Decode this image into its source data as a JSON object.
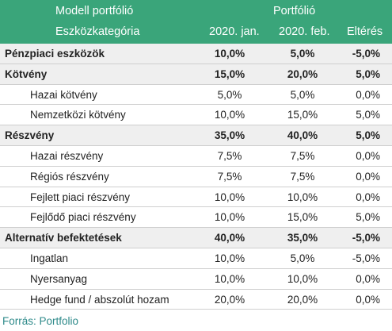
{
  "header": {
    "title": "Modell portfólió",
    "portfolio_label": "Portfólió",
    "category_label": "Eszközkategória",
    "col_jan": "2020. jan.",
    "col_feb": "2020. feb.",
    "col_diff": "Eltérés"
  },
  "rows": [
    {
      "type": "cat",
      "label": "Pénzpiaci eszközök",
      "jan": "10,0%",
      "feb": "5,0%",
      "diff": "-5,0%"
    },
    {
      "type": "cat",
      "label": "Kötvény",
      "jan": "15,0%",
      "feb": "20,0%",
      "diff": "5,0%"
    },
    {
      "type": "sub",
      "label": "Hazai kötvény",
      "jan": "5,0%",
      "feb": "5,0%",
      "diff": "0,0%"
    },
    {
      "type": "sub",
      "label": "Nemzetközi kötvény",
      "jan": "10,0%",
      "feb": "15,0%",
      "diff": "5,0%"
    },
    {
      "type": "cat",
      "label": "Részvény",
      "jan": "35,0%",
      "feb": "40,0%",
      "diff": "5,0%"
    },
    {
      "type": "sub",
      "label": "Hazai részvény",
      "jan": "7,5%",
      "feb": "7,5%",
      "diff": "0,0%"
    },
    {
      "type": "sub",
      "label": "Régiós részvény",
      "jan": "7,5%",
      "feb": "7,5%",
      "diff": "0,0%"
    },
    {
      "type": "sub",
      "label": "Fejlett piaci részvény",
      "jan": "10,0%",
      "feb": "10,0%",
      "diff": "0,0%"
    },
    {
      "type": "sub",
      "label": "Fejlődő piaci részvény",
      "jan": "10,0%",
      "feb": "15,0%",
      "diff": "5,0%"
    },
    {
      "type": "cat",
      "label": "Alternatív befektetések",
      "jan": "40,0%",
      "feb": "35,0%",
      "diff": "-5,0%"
    },
    {
      "type": "sub",
      "label": "Ingatlan",
      "jan": "10,0%",
      "feb": "5,0%",
      "diff": "-5,0%"
    },
    {
      "type": "sub",
      "label": "Nyersanyag",
      "jan": "10,0%",
      "feb": "10,0%",
      "diff": "0,0%"
    },
    {
      "type": "sub",
      "label": "Hedge fund / abszolút hozam",
      "jan": "20,0%",
      "feb": "20,0%",
      "diff": "0,0%"
    }
  ],
  "source": "Forrás: Portfolio",
  "colors": {
    "header_bg": "#3aa57a",
    "category_bg": "#efefef",
    "source_text": "#2e8a8a"
  }
}
